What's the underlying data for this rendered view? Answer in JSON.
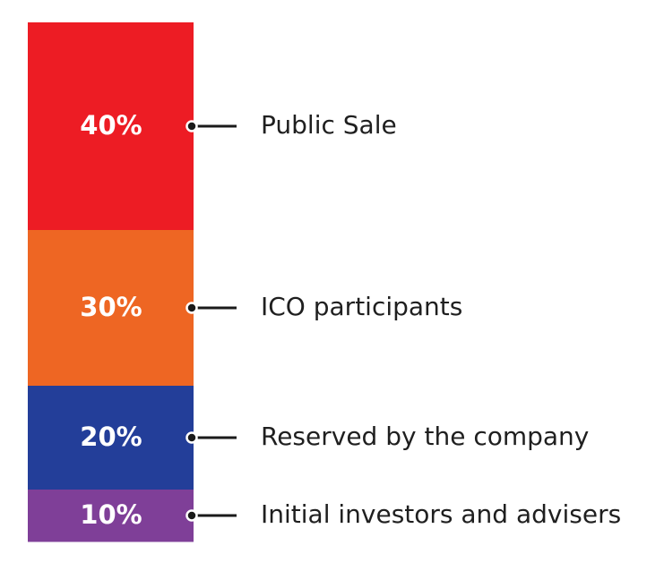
{
  "chart_data": {
    "type": "bar",
    "orientation": "stacked-vertical",
    "total": 100,
    "categories": [
      "Public Sale",
      "ICO participants",
      "Reserved by the company",
      "Initial investors and advisers"
    ],
    "values": [
      40,
      30,
      20,
      10
    ],
    "value_labels": [
      "40%",
      "30%",
      "20%",
      "10%"
    ],
    "colors": [
      "#ed1c24",
      "#ee6623",
      "#233e99",
      "#7f3f98"
    ],
    "stack_order": "top-to-bottom",
    "legend": "right",
    "grid": false
  }
}
